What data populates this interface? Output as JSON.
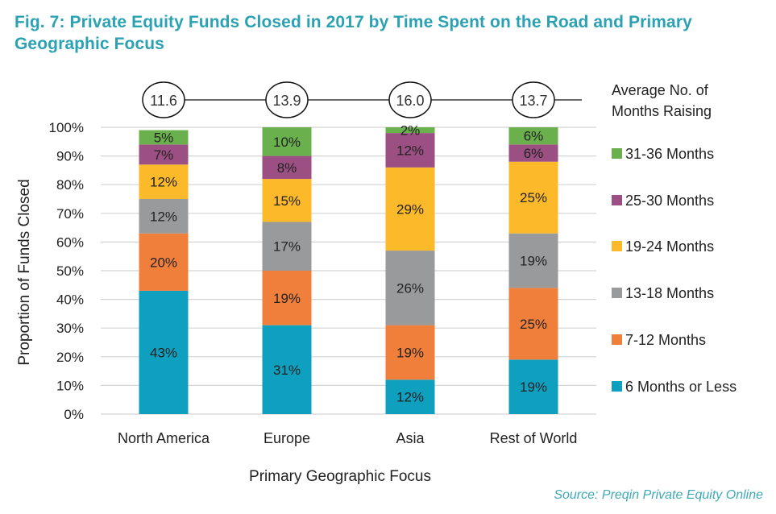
{
  "chart_data": {
    "type": "bar",
    "stacked": true,
    "title": "Fig. 7: Private Equity Funds Closed in 2017 by Time Spent on the Road and Primary Geographic Focus",
    "xlabel": "Primary Geographic Focus",
    "ylabel": "Proportion of Funds Closed",
    "ylim": [
      0,
      100
    ],
    "yticks": [
      "0%",
      "10%",
      "20%",
      "30%",
      "40%",
      "50%",
      "60%",
      "70%",
      "80%",
      "90%",
      "100%"
    ],
    "grid": true,
    "categories": [
      "North America",
      "Europe",
      "Asia",
      "Rest of World"
    ],
    "series": [
      {
        "name": "6 Months or Less",
        "color": "#0fa0c0",
        "values": [
          43,
          31,
          12,
          19
        ]
      },
      {
        "name": "7-12 Months",
        "color": "#f07f3c",
        "values": [
          20,
          19,
          19,
          25
        ]
      },
      {
        "name": "13-18 Months",
        "color": "#999a9c",
        "values": [
          12,
          17,
          26,
          19
        ]
      },
      {
        "name": "19-24 Months",
        "color": "#fcba2b",
        "values": [
          12,
          15,
          29,
          25
        ]
      },
      {
        "name": "25-30 Months",
        "color": "#9b4f82",
        "values": [
          7,
          8,
          12,
          6
        ]
      },
      {
        "name": "31-36 Months",
        "color": "#6ab04c",
        "values": [
          5,
          10,
          2,
          6
        ]
      }
    ],
    "average_months_raising": {
      "label": "Average No. of Months Raising",
      "values": [
        "11.6",
        "13.9",
        "16.0",
        "13.7"
      ]
    },
    "legend_position": "right",
    "legend_order": [
      "31-36 Months",
      "25-30 Months",
      "19-24 Months",
      "13-18 Months",
      "7-12 Months",
      "6 Months or Less"
    ]
  },
  "source": "Source: Preqin Private Equity Online"
}
